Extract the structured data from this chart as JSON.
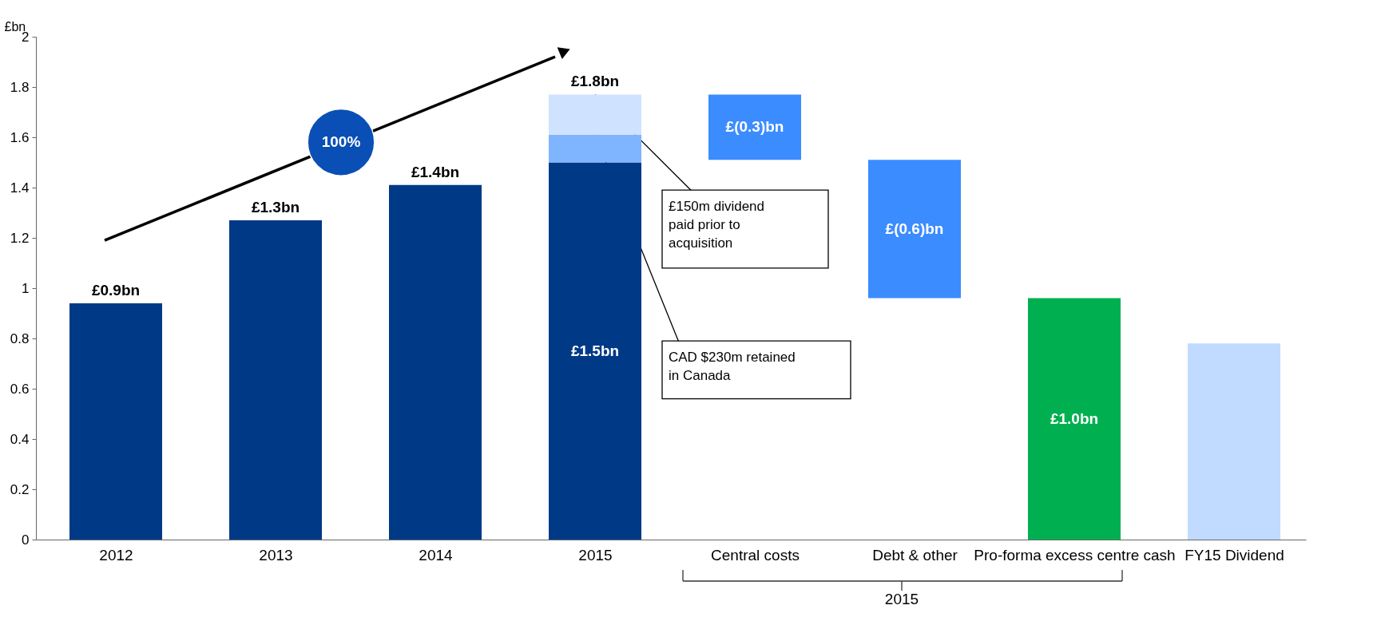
{
  "chart_data": {
    "type": "bar",
    "ylabel": "£bn",
    "categories": [
      "2012",
      "2013",
      "2014",
      "2015",
      "Central costs",
      "Debt & other",
      "Pro-forma excess centre cash",
      "FY15 Dividend"
    ],
    "stacked": true,
    "series": [
      {
        "base": [
          0,
          0,
          0,
          0,
          1.51,
          0.96,
          0,
          0
        ],
        "colors": [
          "#003a87",
          "#003a87",
          "#003a87",
          "#003a87",
          "#3b8cff",
          "#3b8cff",
          "#00b050",
          "#c0dbff"
        ],
        "values": [
          0.94,
          1.27,
          1.41,
          1.5,
          0.26,
          0.55,
          0.96,
          0.78
        ],
        "value_labels": [
          "£0.9bn",
          "£1.3bn",
          "£1.4bn",
          "£1.5bn",
          "£(0.3)bn",
          "£(0.6)bn",
          "£1.0bn",
          null
        ]
      },
      {
        "color": "#7fb4ff",
        "values": [
          null,
          null,
          null,
          0.11,
          null,
          null,
          null,
          null
        ]
      },
      {
        "color": "#cfe2ff",
        "values": [
          null,
          null,
          null,
          0.16,
          null,
          null,
          null,
          null
        ]
      }
    ],
    "totals": [
      null,
      null,
      null,
      "£1.8bn",
      null,
      null,
      null,
      null
    ],
    "ylim": [
      0,
      2
    ],
    "yticks": [
      0,
      0.2,
      0.4,
      0.6,
      0.8,
      1,
      1.2,
      1.4,
      1.6,
      1.8,
      2
    ],
    "grid": false,
    "legend": false,
    "annotations": [
      "100%",
      "2015",
      {
        "text": "£150m dividend paid prior to acquisition",
        "x": "2015",
        "y": 1.77
      },
      {
        "text": "CAD $230m retained in Canada",
        "x": "2015",
        "y": 1.61
      }
    ]
  }
}
